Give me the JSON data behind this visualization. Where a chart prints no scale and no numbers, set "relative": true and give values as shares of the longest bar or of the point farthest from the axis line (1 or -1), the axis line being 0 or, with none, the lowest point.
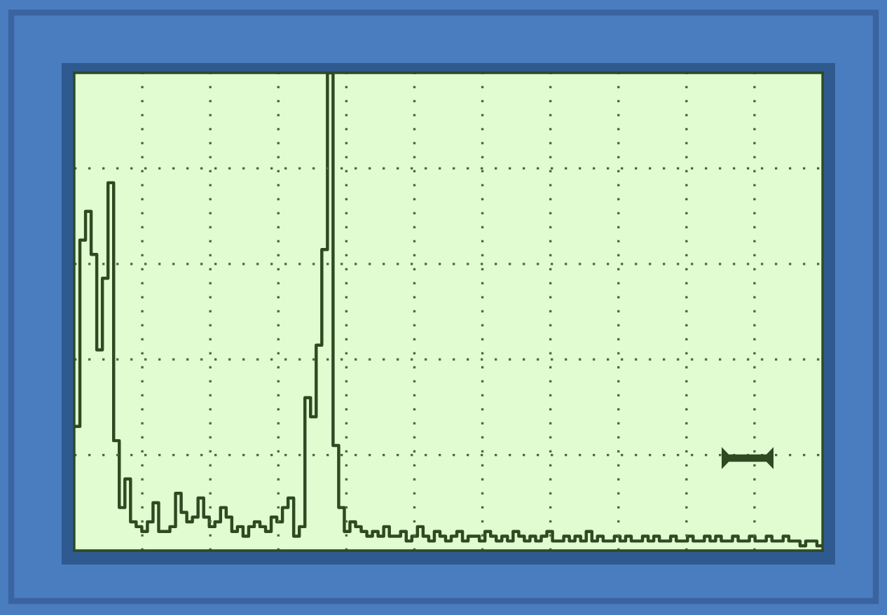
{
  "chart_data": {
    "type": "step",
    "relative": true,
    "grid": true,
    "line_style": "solid",
    "marker": "none",
    "categories": [
      null,
      null,
      null,
      null,
      null,
      null,
      null,
      null,
      null,
      null,
      null,
      null,
      null,
      null,
      null,
      null,
      null,
      null,
      null,
      null,
      null,
      null,
      null,
      null,
      null,
      null,
      null,
      null,
      null,
      null,
      null,
      null,
      null,
      null,
      null,
      null,
      null,
      null,
      null,
      null,
      null,
      null,
      null,
      null,
      null,
      null,
      null,
      null,
      null,
      null,
      null,
      null,
      null,
      null,
      null,
      null,
      null,
      null,
      null,
      null,
      null,
      null,
      null,
      null,
      null,
      null,
      null,
      null,
      null,
      null,
      null,
      null,
      null,
      null,
      null,
      null,
      null,
      null,
      null,
      null,
      null,
      null,
      null,
      null,
      null,
      null,
      null,
      null,
      null,
      null,
      null,
      null,
      null,
      null,
      null,
      null,
      null,
      null,
      null,
      null,
      null,
      null,
      null,
      null,
      null,
      null,
      null,
      null,
      null,
      null,
      null,
      null,
      null,
      null,
      null,
      null,
      null,
      null,
      null,
      null,
      null,
      null,
      null,
      null,
      null,
      null,
      null,
      null,
      null,
      null,
      null,
      null,
      null,
      null
    ],
    "series": [
      {
        "color": "#2d4a22",
        "values": [
          0.26,
          0.65,
          0.71,
          0.62,
          0.42,
          0.57,
          0.77,
          0.23,
          0.09,
          0.15,
          0.06,
          0.05,
          0.04,
          0.06,
          0.1,
          0.04,
          0.04,
          0.05,
          0.12,
          0.08,
          0.06,
          0.07,
          0.11,
          0.07,
          0.05,
          0.06,
          0.09,
          0.07,
          0.04,
          0.05,
          0.03,
          0.05,
          0.06,
          0.05,
          0.04,
          0.07,
          0.06,
          0.09,
          0.11,
          0.03,
          0.05,
          0.32,
          0.28,
          0.43,
          0.63,
          1.0,
          0.22,
          0.09,
          0.04,
          0.06,
          0.05,
          0.04,
          0.03,
          0.04,
          0.03,
          0.05,
          0.03,
          0.03,
          0.04,
          0.02,
          0.03,
          0.05,
          0.03,
          0.02,
          0.04,
          0.03,
          0.02,
          0.03,
          0.04,
          0.02,
          0.03,
          0.03,
          0.02,
          0.04,
          0.03,
          0.02,
          0.03,
          0.02,
          0.04,
          0.03,
          0.02,
          0.03,
          0.02,
          0.03,
          0.04,
          0.02,
          0.02,
          0.03,
          0.02,
          0.03,
          0.02,
          0.04,
          0.02,
          0.03,
          0.02,
          0.02,
          0.03,
          0.02,
          0.03,
          0.02,
          0.02,
          0.03,
          0.02,
          0.03,
          0.02,
          0.02,
          0.03,
          0.02,
          0.02,
          0.03,
          0.02,
          0.02,
          0.03,
          0.02,
          0.03,
          0.02,
          0.02,
          0.03,
          0.02,
          0.02,
          0.03,
          0.02,
          0.02,
          0.03,
          0.02,
          0.02,
          0.03,
          0.02,
          0.02,
          0.01,
          0.02,
          0.02,
          0.01,
          0.01
        ]
      }
    ]
  }
}
